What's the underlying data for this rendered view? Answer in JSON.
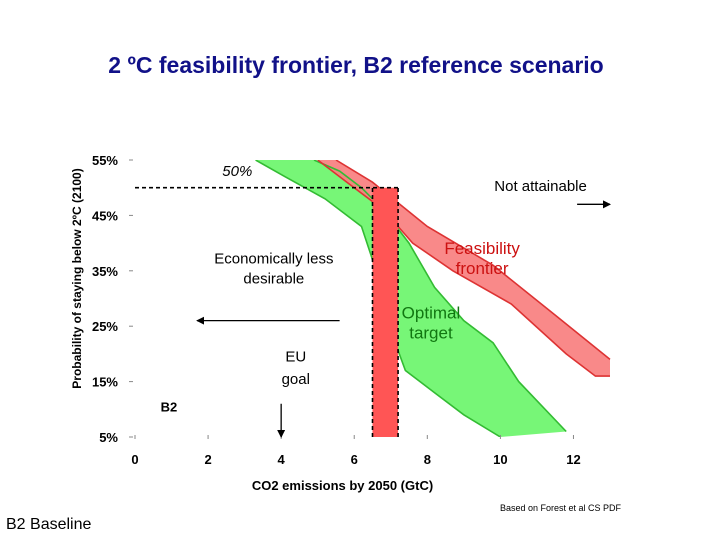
{
  "slide": {
    "title": "2 ºC feasibility frontier, B2 reference scenario",
    "source_note": "Based on Forest et al CS PDF",
    "footer_label": "B2 Baseline"
  },
  "chart_data": {
    "type": "area",
    "xlabel": "CO2 emissions by 2050 (GtC)",
    "ylabel": "Probability of staying below 2ºC (2100)",
    "xlim": [
      0,
      13
    ],
    "ylim": [
      5,
      55
    ],
    "x_ticks": [
      0,
      2,
      4,
      6,
      8,
      10,
      12
    ],
    "y_ticks": [
      5,
      15,
      25,
      35,
      45,
      55
    ],
    "y_tick_labels": [
      "5%",
      "15%",
      "25%",
      "35%",
      "45%",
      "55%"
    ],
    "grid": false,
    "legend": "none",
    "colors": {
      "green_fill": "#77f677",
      "green_edge": "#33bb33",
      "red_fill": "#f87f7f",
      "red_edge": "#dd3333",
      "overlap": "#cc7a3a",
      "bar": "#ff5555",
      "title": "#111188"
    },
    "series": [
      {
        "key": "green_band",
        "upper": [
          [
            4.9,
            55
          ],
          [
            5.6,
            53
          ],
          [
            6.2,
            50
          ],
          [
            6.8,
            46
          ],
          [
            7.5,
            40
          ],
          [
            8.2,
            32
          ],
          [
            9.0,
            26
          ],
          [
            9.8,
            22
          ],
          [
            10.5,
            15
          ],
          [
            11.8,
            6
          ]
        ],
        "lower": [
          [
            3.3,
            55
          ],
          [
            4.1,
            52
          ],
          [
            5.2,
            48
          ],
          [
            6.2,
            43
          ],
          [
            6.5,
            37
          ],
          [
            6.9,
            26
          ],
          [
            7.4,
            17
          ],
          [
            8.2,
            13
          ],
          [
            9.0,
            9
          ],
          [
            10.0,
            5
          ]
        ]
      },
      {
        "key": "red_band",
        "upper": [
          [
            5.5,
            55
          ],
          [
            6.5,
            51
          ],
          [
            8.0,
            43
          ],
          [
            9.8,
            36
          ],
          [
            11.5,
            27
          ],
          [
            13.0,
            19
          ]
        ],
        "lower": [
          [
            5.0,
            55
          ],
          [
            5.8,
            51
          ],
          [
            6.8,
            46
          ],
          [
            7.6,
            40
          ],
          [
            8.7,
            35
          ],
          [
            10.3,
            29
          ],
          [
            11.8,
            20
          ],
          [
            12.6,
            16
          ],
          [
            13.0,
            16
          ]
        ]
      }
    ],
    "highlight_bar": {
      "x_range": [
        6.5,
        7.2
      ],
      "y_range": [
        5,
        50
      ]
    },
    "reference_lines": [
      {
        "type": "horizontal",
        "y": 50,
        "x_range": [
          0,
          7.2
        ],
        "dashed": true
      },
      {
        "type": "vertical",
        "x": 6.5,
        "y_range": [
          5,
          50
        ],
        "dashed": true
      },
      {
        "type": "vertical",
        "x": 7.2,
        "y_range": [
          5,
          50
        ],
        "dashed": true
      }
    ],
    "arrows": [
      {
        "from": [
          12.1,
          47
        ],
        "to": [
          13.0,
          47
        ]
      },
      {
        "from": [
          5.6,
          26
        ],
        "to": [
          1.7,
          26
        ]
      },
      {
        "from": [
          4.0,
          11
        ],
        "to": [
          4.0,
          5
        ]
      }
    ],
    "annotations": [
      {
        "key": "p50",
        "text": "50%",
        "x": 2.8,
        "y": 52.1,
        "italic": true
      },
      {
        "key": "not_attainable",
        "text": "Not attainable",
        "x": 11.1,
        "y": 49.4
      },
      {
        "key": "econ1",
        "text": "Economically less",
        "x": 3.8,
        "y": 36.3
      },
      {
        "key": "econ2",
        "text": "desirable",
        "x": 3.8,
        "y": 32.7
      },
      {
        "key": "feas1",
        "text": "Feasibility",
        "x": 9.5,
        "y": 38.0,
        "color": "#cc1111"
      },
      {
        "key": "feas2",
        "text": "frontier",
        "x": 9.5,
        "y": 34.4,
        "color": "#cc1111"
      },
      {
        "key": "opt1",
        "text": "Optimal",
        "x": 8.1,
        "y": 26.4,
        "color": "#117711"
      },
      {
        "key": "opt2",
        "text": "target",
        "x": 8.1,
        "y": 22.8,
        "color": "#117711"
      },
      {
        "key": "eu1",
        "text": "EU",
        "x": 4.4,
        "y": 18.6
      },
      {
        "key": "eu2",
        "text": "goal",
        "x": 4.4,
        "y": 14.6
      },
      {
        "key": "b2",
        "text": "B2",
        "x": 0.7,
        "y": 9.6,
        "bold": true
      }
    ]
  }
}
